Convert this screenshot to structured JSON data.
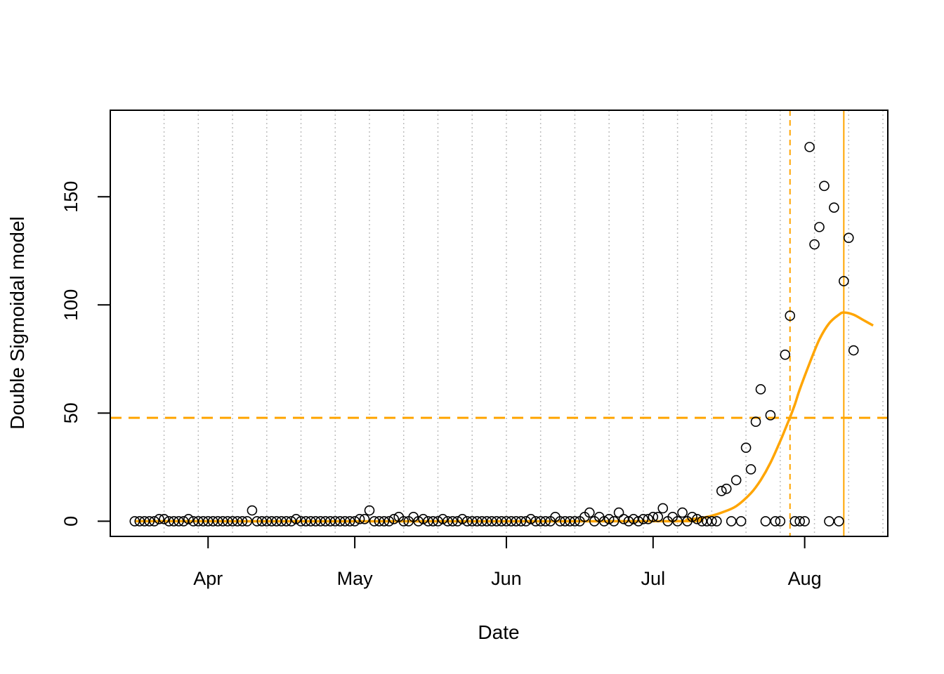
{
  "chart_data": {
    "type": "scatter",
    "title": "",
    "xlabel": "Date",
    "ylabel": "Double Sigmoidal model",
    "xlim": [
      "2020-03-12",
      "2020-08-18"
    ],
    "ylim": [
      -7,
      190
    ],
    "x_ticks": [
      {
        "date": "2020-04-01",
        "label": "Apr"
      },
      {
        "date": "2020-05-01",
        "label": "May"
      },
      {
        "date": "2020-06-01",
        "label": "Jun"
      },
      {
        "date": "2020-07-01",
        "label": "Jul"
      },
      {
        "date": "2020-08-01",
        "label": "Aug"
      }
    ],
    "y_ticks": [
      0,
      50,
      100,
      150
    ],
    "grid": {
      "vertical_dotted_lines_every_days": 7,
      "first_line_date": "2020-03-23"
    },
    "colors": {
      "model": "#FFA500",
      "grid": "#BEBEBE",
      "points": "#000000"
    },
    "observed": {
      "start_date": "2020-03-17",
      "values": [
        0,
        0,
        0,
        0,
        0,
        1,
        1,
        0,
        0,
        0,
        0,
        1,
        0,
        0,
        0,
        0,
        0,
        0,
        0,
        0,
        0,
        0,
        0,
        0,
        5,
        0,
        0,
        0,
        0,
        0,
        0,
        0,
        0,
        1,
        0,
        0,
        0,
        0,
        0,
        0,
        0,
        0,
        0,
        0,
        0,
        0,
        1,
        1,
        5,
        0,
        0,
        0,
        0,
        1,
        2,
        0,
        0,
        2,
        0,
        1,
        0,
        0,
        0,
        1,
        0,
        0,
        0,
        1,
        0,
        0,
        0,
        0,
        0,
        0,
        0,
        0,
        0,
        0,
        0,
        0,
        0,
        1,
        0,
        0,
        0,
        0,
        2,
        0,
        0,
        0,
        0,
        0,
        2,
        4,
        0,
        2,
        0,
        1,
        0,
        4,
        1,
        0,
        1,
        0,
        1,
        1,
        2,
        2,
        6,
        0,
        2,
        0,
        4,
        0,
        2,
        1,
        0,
        0,
        0,
        0,
        14,
        15,
        0,
        19,
        0,
        34,
        24,
        46,
        61,
        0,
        49,
        0,
        0,
        77,
        95,
        0,
        0,
        0,
        173,
        128,
        136,
        155,
        0,
        145,
        0,
        111,
        131,
        79
      ]
    },
    "model": {
      "name": "Double Sigmoidal model",
      "curve": [
        [
          "2020-03-17",
          0
        ],
        [
          "2020-07-01",
          0
        ],
        [
          "2020-07-08",
          0.8
        ],
        [
          "2020-07-12",
          2
        ],
        [
          "2020-07-15",
          4
        ],
        [
          "2020-07-18",
          7
        ],
        [
          "2020-07-21",
          13
        ],
        [
          "2020-07-23",
          19
        ],
        [
          "2020-07-25",
          27
        ],
        [
          "2020-07-27",
          37
        ],
        [
          "2020-07-28",
          42.5
        ],
        [
          "2020-07-29",
          48
        ],
        [
          "2020-07-30",
          54
        ],
        [
          "2020-07-31",
          61
        ],
        [
          "2020-08-02",
          73
        ],
        [
          "2020-08-04",
          84
        ],
        [
          "2020-08-06",
          91.5
        ],
        [
          "2020-08-08",
          95.5
        ],
        [
          "2020-08-09",
          96.5
        ],
        [
          "2020-08-11",
          95.5
        ],
        [
          "2020-08-13",
          93
        ],
        [
          "2020-08-15",
          90.5
        ]
      ],
      "midpoint_date": "2020-07-29",
      "midpoint_value": 47.8,
      "peak_date": "2020-08-09"
    }
  }
}
